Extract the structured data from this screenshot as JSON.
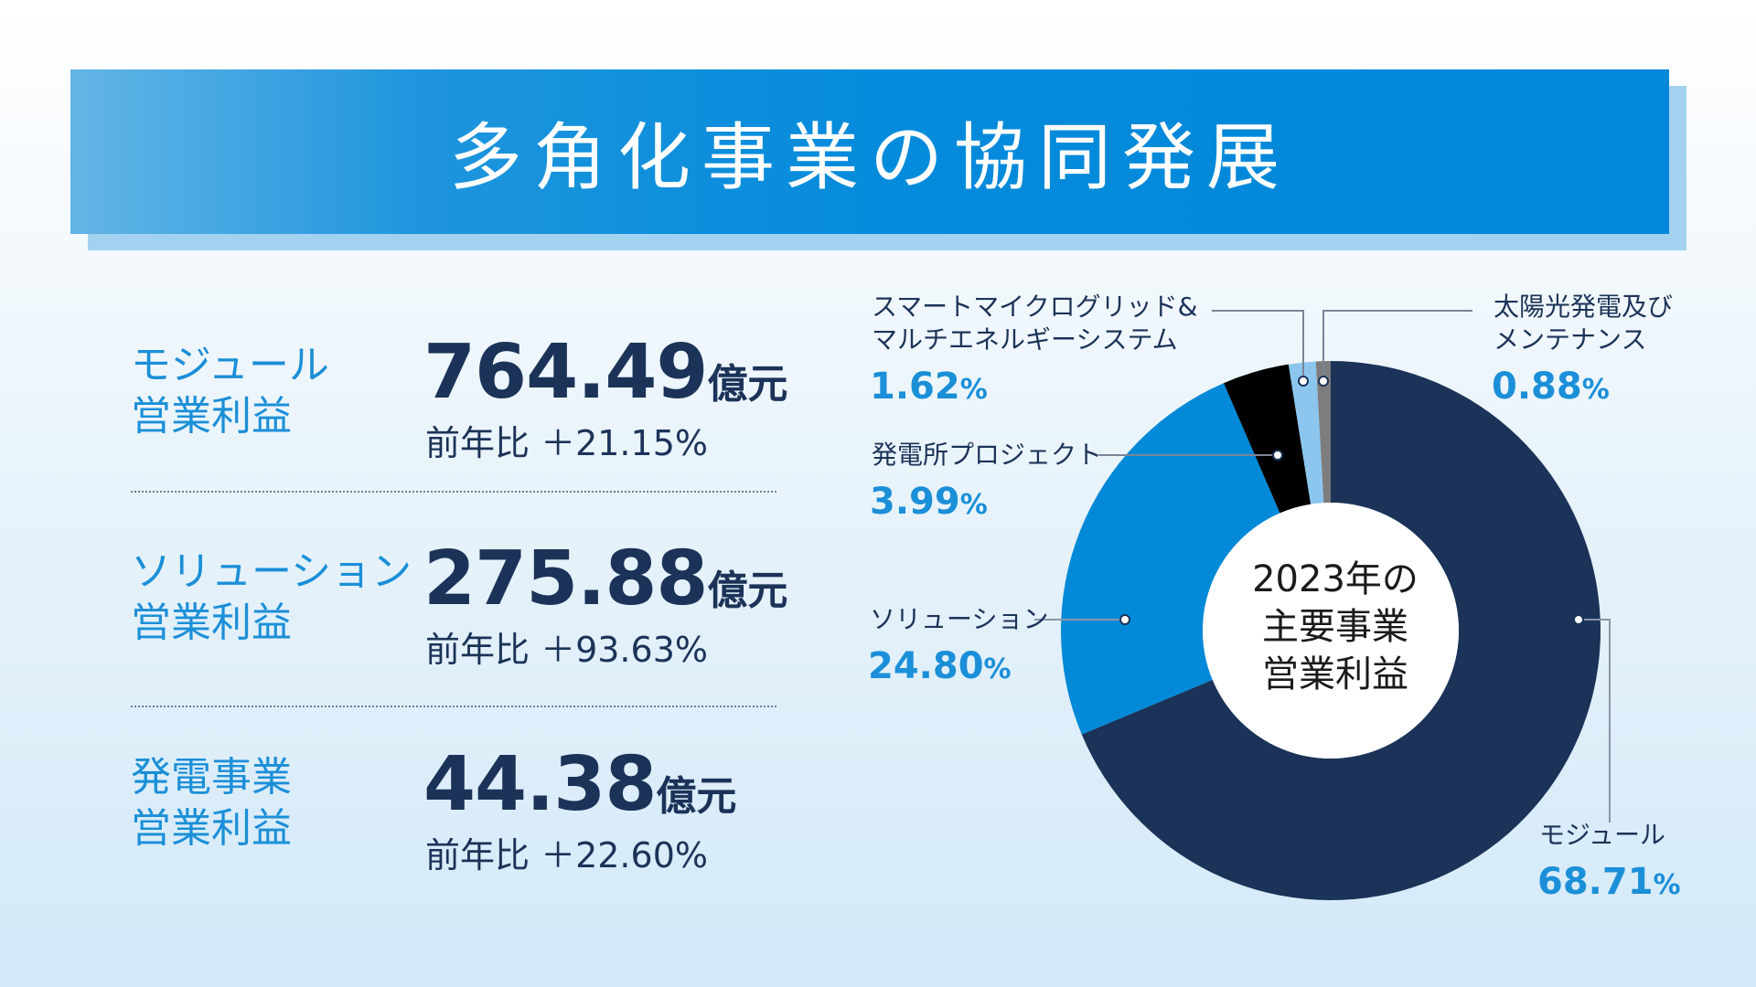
{
  "title": "多角化事業の協同発展",
  "metrics": [
    {
      "label_line1": "モジュール",
      "label_line2": "営業利益",
      "value": "764.49",
      "unit": "億元",
      "yoy": "前年比 ＋21.15%"
    },
    {
      "label_line1": "ソリューション",
      "label_line2": "営業利益",
      "value": "275.88",
      "unit": "億元",
      "yoy": "前年比 ＋93.63%"
    },
    {
      "label_line1": "発電事業",
      "label_line2": "営業利益",
      "value": "44.38",
      "unit": "億元",
      "yoy": "前年比 ＋22.60%"
    }
  ],
  "chart_data": {
    "type": "pie",
    "variant": "donut",
    "center_label": [
      "2023年の",
      "主要事業",
      "営業利益"
    ],
    "unit": "%",
    "slices": [
      {
        "label": [
          "モジュール"
        ],
        "value": 68.71,
        "display": "68.71",
        "color": "#1b3358"
      },
      {
        "label": [
          "ソリューション"
        ],
        "value": 24.8,
        "display": "24.80",
        "color": "#0289d8"
      },
      {
        "label": [
          "発電所プロジェクト"
        ],
        "value": 3.99,
        "display": "3.99",
        "color": "#000000"
      },
      {
        "label": [
          "スマートマイクログリッド&",
          "マルチエネルギーシステム"
        ],
        "value": 1.62,
        "display": "1.62",
        "color": "#8cc6ee"
      },
      {
        "label": [
          "太陽光発電及び",
          "メンテナンス"
        ],
        "value": 0.88,
        "display": "0.88",
        "color": "#7d7d7d"
      }
    ],
    "start": "12 o'clock",
    "direction": "clockwise",
    "legend": "callouts"
  }
}
